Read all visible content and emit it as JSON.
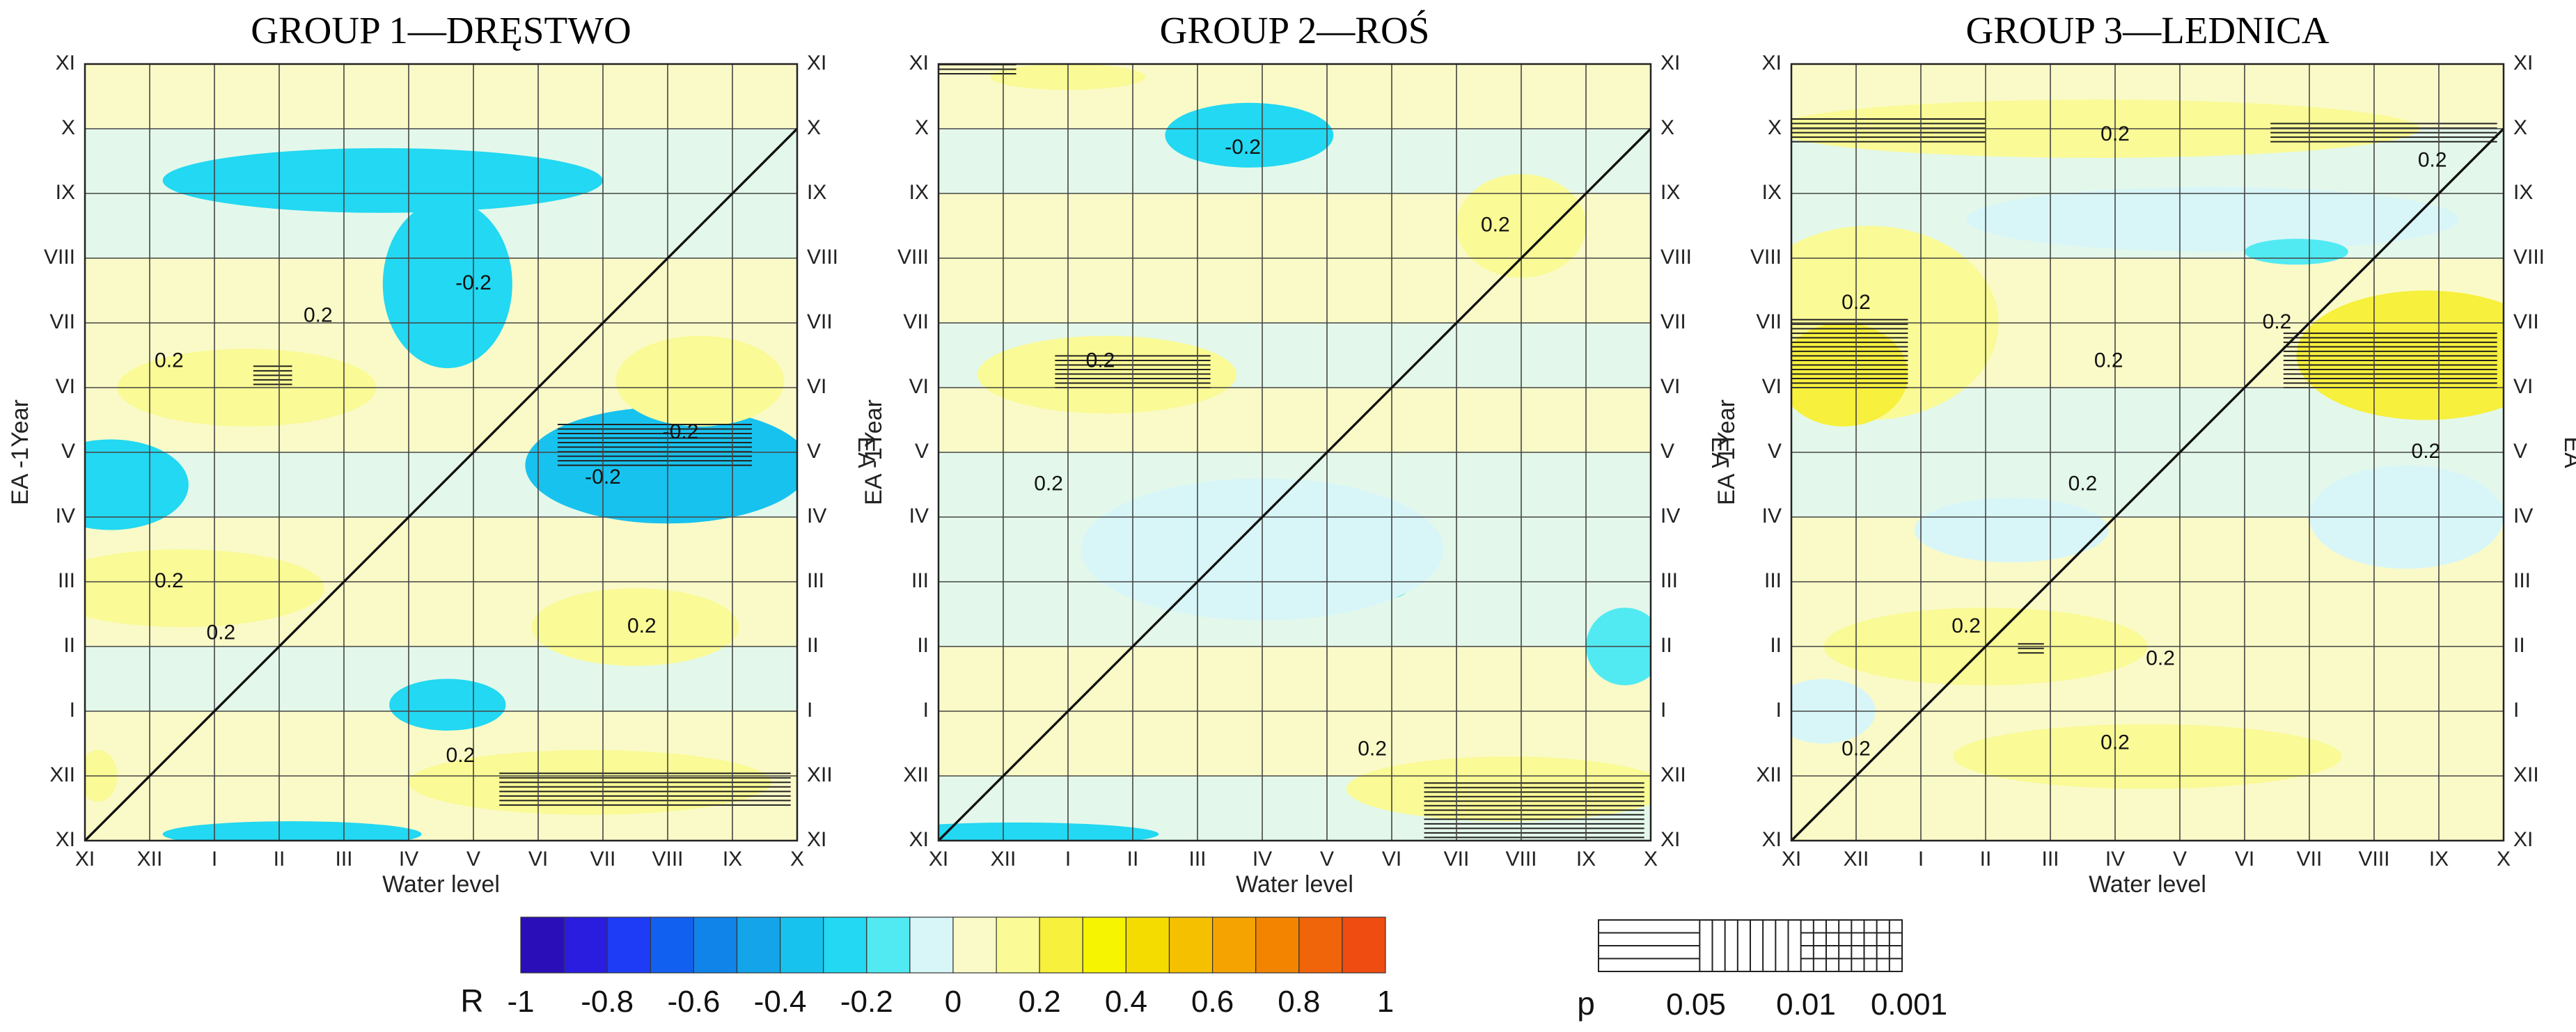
{
  "chart_data": {
    "type": "heatmap",
    "description_scale": "Correlation coefficient R between earlywood area index (EA / EA-1Year) and monthly water level",
    "month_ticks": [
      "XI",
      "XII",
      "I",
      "II",
      "III",
      "IV",
      "V",
      "VI",
      "VII",
      "VIII",
      "IX",
      "X"
    ],
    "month_ticks_y": [
      "XI",
      "XII",
      "I",
      "II",
      "III",
      "IV",
      "V",
      "VI",
      "VII",
      "VIII",
      "IX",
      "X",
      "XI"
    ],
    "colorscale": {
      "label": "R",
      "ticks": [
        "-1",
        "-0.8",
        "-0.6",
        "-0.4",
        "-0.2",
        "0",
        "0.2",
        "0.4",
        "0.6",
        "0.8",
        "1"
      ],
      "colors": [
        "#2a0fb8",
        "#2a1de0",
        "#1e3cf5",
        "#1260f0",
        "#1184ea",
        "#14a4ea",
        "#18c2ee",
        "#22d8f2",
        "#52eaf2",
        "#d8f6f8",
        "#fafac8",
        "#fafa96",
        "#f7f03c",
        "#f6f400",
        "#f4dc00",
        "#f4c000",
        "#f4a300",
        "#f28400",
        "#f0640a",
        "#ee4c10"
      ]
    },
    "significance_legend": {
      "label": "p",
      "ticks": [
        "0.05",
        "0.01",
        "0.001"
      ]
    },
    "panels": [
      {
        "title": "GROUP 1—DRĘSTWO",
        "xlabel": "Water level",
        "ylabel_left": "EA -1Year",
        "ylabel_right": "EA",
        "contour_labels": [
          {
            "text": "-0.2",
            "x": 6.0,
            "y": 8.6
          },
          {
            "text": "-0.2",
            "x": 9.2,
            "y": 6.3
          },
          {
            "text": "-0.2",
            "x": 8.0,
            "y": 5.6
          },
          {
            "text": "0.2",
            "x": 3.6,
            "y": 8.1
          },
          {
            "text": "0.2",
            "x": 1.3,
            "y": 7.4
          },
          {
            "text": "0.2",
            "x": 1.3,
            "y": 4.0
          },
          {
            "text": "0.2",
            "x": 2.1,
            "y": 3.2
          },
          {
            "text": "0.2",
            "x": 8.6,
            "y": 3.3
          },
          {
            "text": "0.2",
            "x": 5.8,
            "y": 1.3
          }
        ]
      },
      {
        "title": "GROUP 2—ROŚ",
        "xlabel": "Water level",
        "ylabel_left": "EA -1Year",
        "ylabel_right": "EA",
        "contour_labels": [
          {
            "text": "-0.2",
            "x": 4.7,
            "y": 10.7
          },
          {
            "text": "0.2",
            "x": 8.6,
            "y": 9.5
          },
          {
            "text": "0.2",
            "x": 2.5,
            "y": 7.4
          },
          {
            "text": "0.2",
            "x": 1.7,
            "y": 5.5
          },
          {
            "text": "0.2",
            "x": 6.7,
            "y": 1.4
          }
        ]
      },
      {
        "title": "GROUP 3—LEDNICA",
        "xlabel": "Water level",
        "ylabel_left": "EA -1Year",
        "ylabel_right": "EA",
        "contour_labels": [
          {
            "text": "0.2",
            "x": 5.0,
            "y": 10.9
          },
          {
            "text": "0.2",
            "x": 9.9,
            "y": 10.5
          },
          {
            "text": "0.2",
            "x": 1.0,
            "y": 8.3
          },
          {
            "text": "0.2",
            "x": 4.9,
            "y": 7.4
          },
          {
            "text": "0.2",
            "x": 7.5,
            "y": 8.0
          },
          {
            "text": "0.2",
            "x": 9.8,
            "y": 6.0
          },
          {
            "text": "0.2",
            "x": 4.5,
            "y": 5.5
          },
          {
            "text": "0.2",
            "x": 2.7,
            "y": 3.3
          },
          {
            "text": "0.2",
            "x": 5.7,
            "y": 2.8
          },
          {
            "text": "0.2",
            "x": 5.0,
            "y": 1.5
          },
          {
            "text": "0.2",
            "x": 1.0,
            "y": 1.4
          }
        ]
      }
    ]
  }
}
